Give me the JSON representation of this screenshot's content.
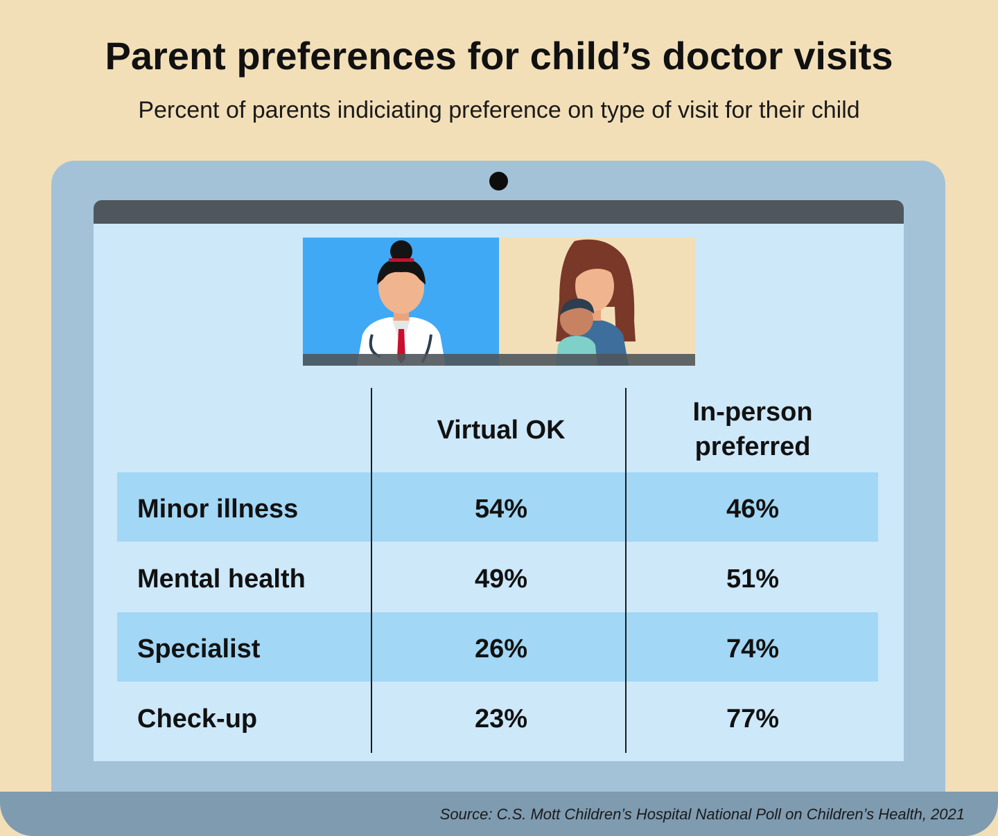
{
  "title": "Parent preferences for child’s doctor visits",
  "subtitle": "Percent of parents indiciating preference on type of visit for their child",
  "source": "Source: C.S. Mott Children’s Hospital National Poll on Children’s Health, 2021",
  "chart_data": {
    "type": "table",
    "columns": [
      "Virtual OK",
      "In-person preferred"
    ],
    "column_label_lines": [
      [
        "Virtual OK"
      ],
      [
        "In-person",
        "preferred"
      ]
    ],
    "rows": [
      {
        "label": "Minor illness",
        "values": [
          "54%",
          "46%"
        ]
      },
      {
        "label": "Mental health",
        "values": [
          "49%",
          "51%"
        ]
      },
      {
        "label": "Specialist",
        "values": [
          "26%",
          "74%"
        ]
      },
      {
        "label": "Check-up",
        "values": [
          "23%",
          "77%"
        ]
      }
    ]
  },
  "colors": {
    "background": "#f2dfb8",
    "laptop": "#a3c2d8",
    "screen": "#cde8f9",
    "row_highlight": "#a2d7f5",
    "base": "#7e9bb0"
  }
}
